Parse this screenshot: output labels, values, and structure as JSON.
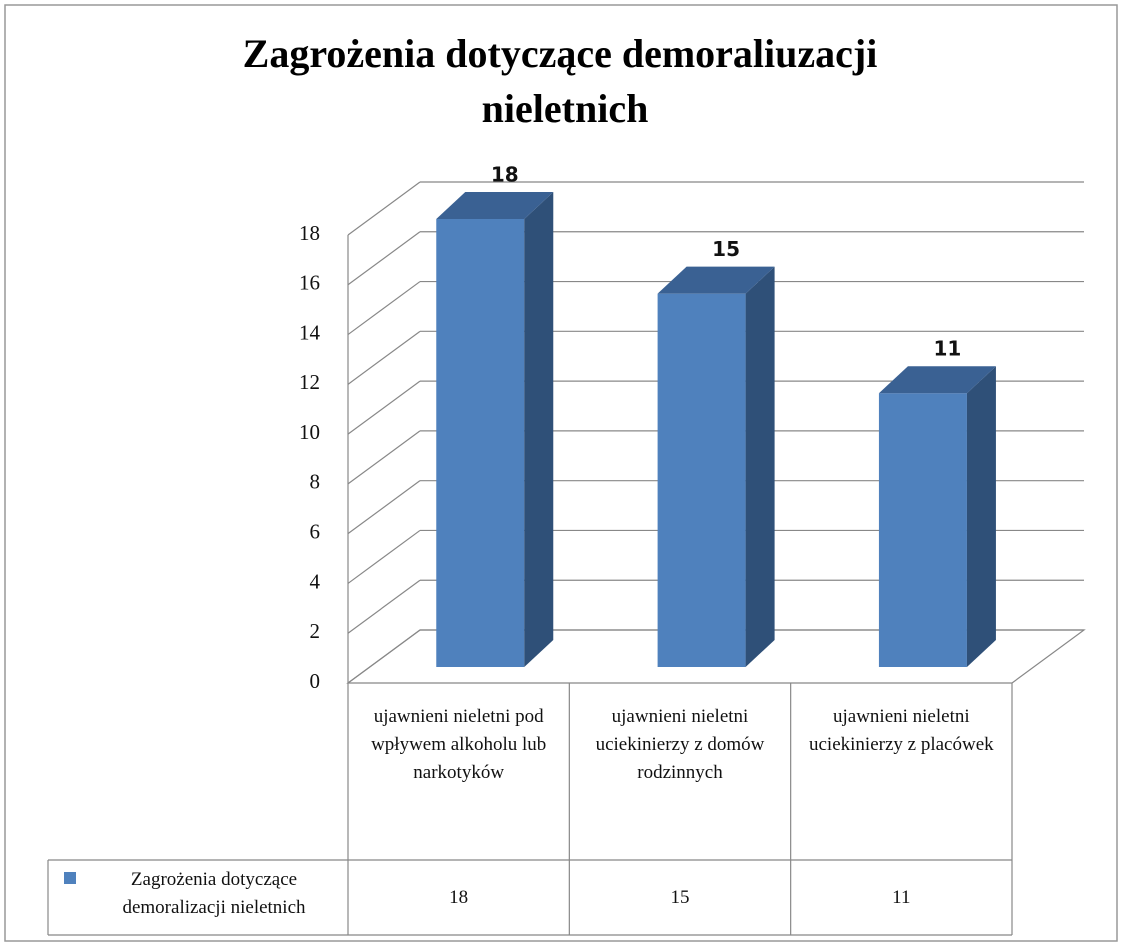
{
  "chart_data": {
    "type": "bar3d",
    "title": "Zagrożenia dotyczące demoraliuzacji nieletnich",
    "categories": [
      "ujawnieni nieletni pod wpływem alkoholu lub narkotyków",
      "ujawnieni nieletni uciekinierzy z domów rodzinnych",
      "ujawnieni nieletni uciekinierzy z placówek"
    ],
    "series": [
      {
        "name": "Zagrożenia dotyczące demoralizacji nieletnich",
        "color": "#4f81bd",
        "values": [
          18,
          15,
          11
        ]
      }
    ],
    "ylim": [
      0,
      18
    ],
    "yticks": [
      0,
      2,
      4,
      6,
      8,
      10,
      12,
      14,
      16,
      18
    ],
    "grid": true,
    "data_table": true
  }
}
